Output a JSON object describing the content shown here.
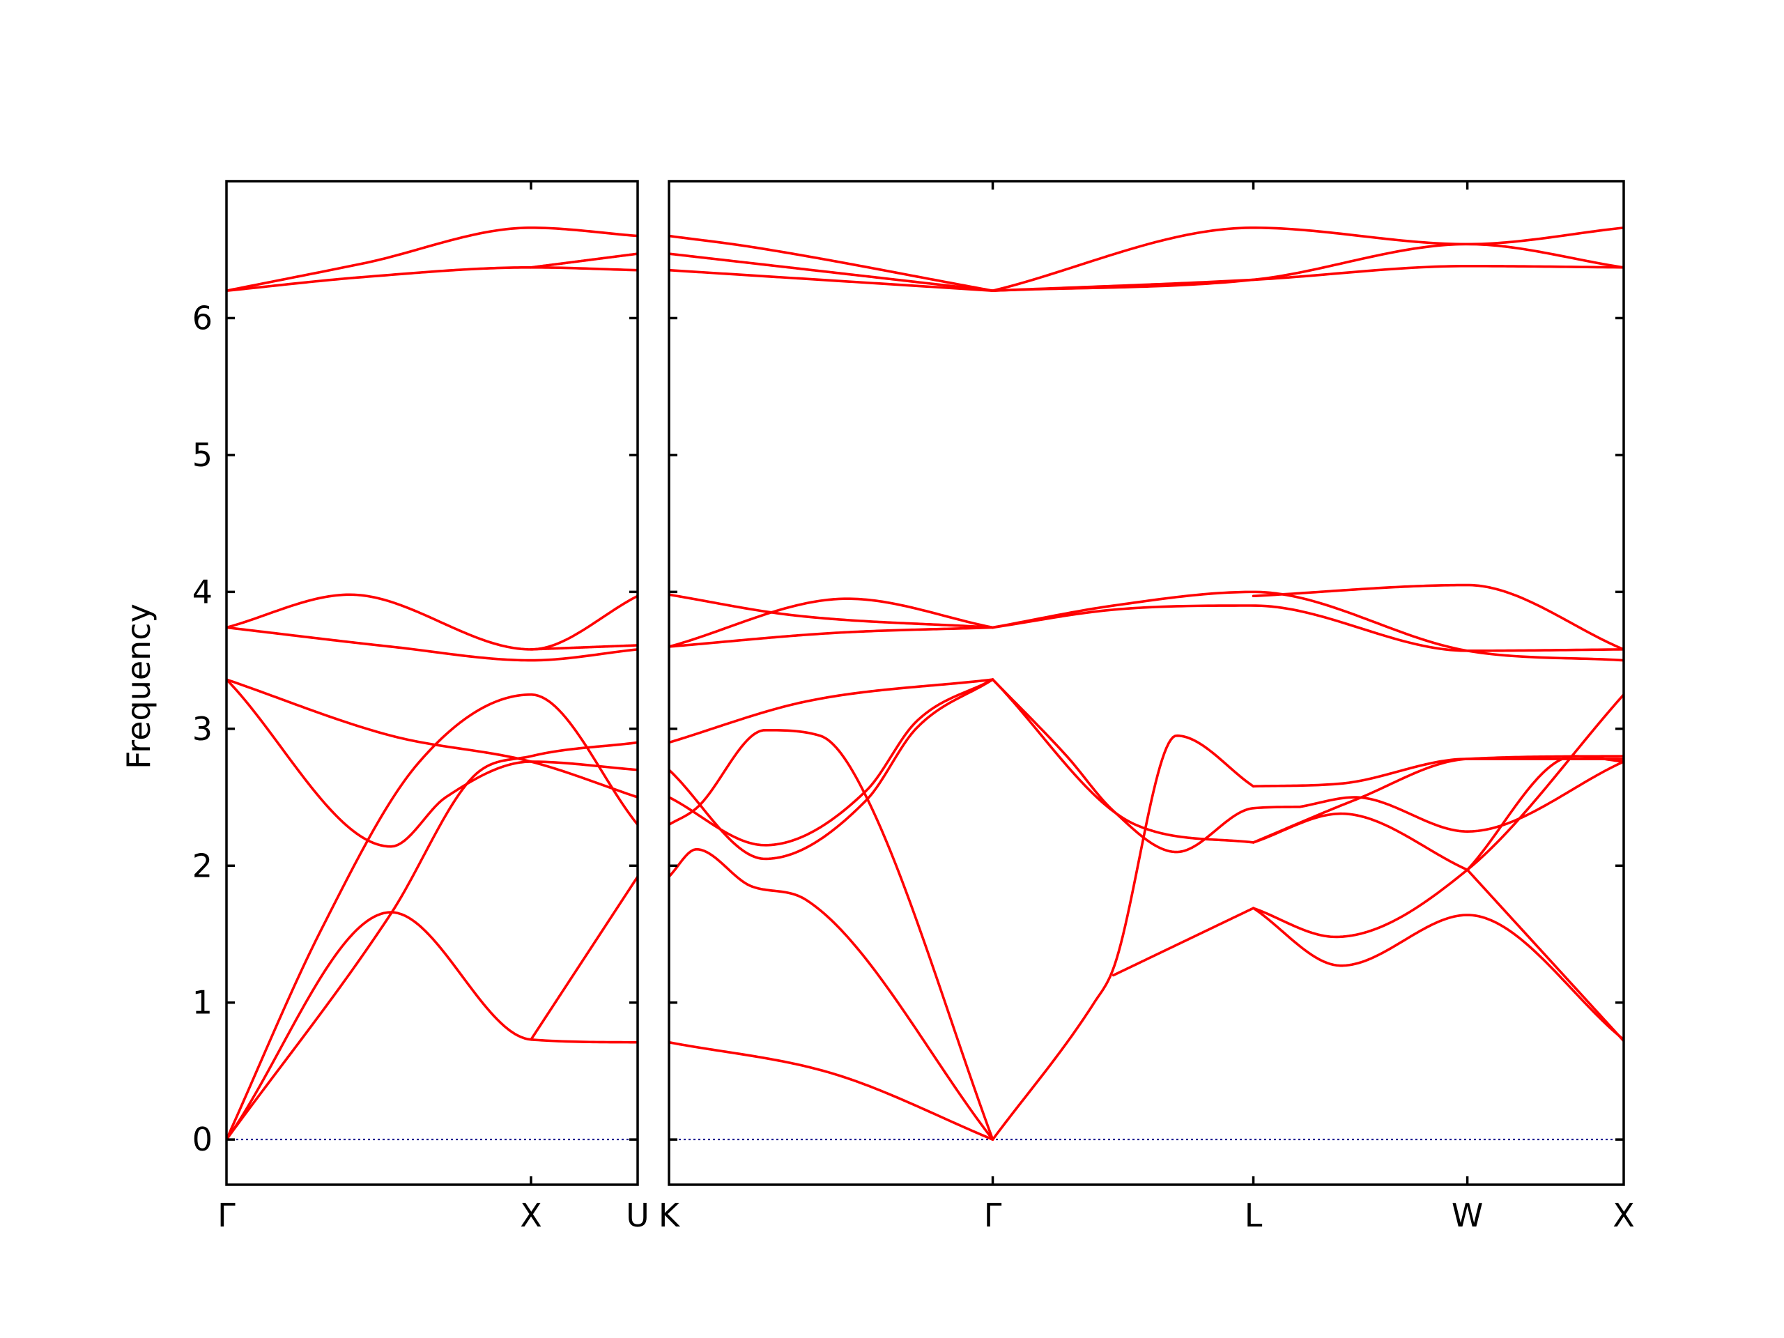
{
  "chart_data": {
    "type": "line",
    "ylabel": "Frequency",
    "ylim": [
      -0.33,
      7.0
    ],
    "yticks": [
      0,
      1,
      2,
      3,
      4,
      5,
      6
    ],
    "grid": false,
    "colors": {
      "bands": "#ff0000",
      "zero_line": "#00008b",
      "frame": "#000000"
    },
    "panels": [
      {
        "name": "left",
        "xlim": [
          0,
          1.5
        ],
        "xticks": [
          {
            "x": 0,
            "label": "Γ"
          },
          {
            "x": 1.111,
            "label": "X"
          },
          {
            "x": 1.5,
            "label": "U"
          }
        ],
        "bands": [
          {
            "x": [
              0,
              0.6,
              1.111,
              1.5
            ],
            "y": [
              0,
              1.66,
              0.73,
              0.71
            ]
          },
          {
            "x": [
              1.111,
              1.5
            ],
            "y": [
              0.73,
              1.92
            ]
          },
          {
            "x": [
              0,
              0.35,
              0.7,
              1.111,
              1.5
            ],
            "y": [
              0,
              1.55,
              2.75,
              3.25,
              2.3
            ]
          },
          {
            "x": [
              0,
              0.6,
              0.9,
              1.111,
              1.5
            ],
            "y": [
              0,
              1.65,
              2.65,
              2.8,
              2.9
            ]
          },
          {
            "x": [
              0,
              0.6,
              0.8,
              1.111,
              1.5
            ],
            "y": [
              3.36,
              2.14,
              2.5,
              2.76,
              2.7
            ]
          },
          {
            "x": [
              0,
              0.6,
              1.111,
              1.5
            ],
            "y": [
              3.36,
              2.95,
              2.76,
              2.5
            ]
          },
          {
            "x": [
              0,
              0.6,
              1.111,
              1.5
            ],
            "y": [
              3.74,
              3.6,
              3.5,
              3.58
            ]
          },
          {
            "x": [
              0,
              0.45,
              1.111,
              1.5
            ],
            "y": [
              3.74,
              3.98,
              3.58,
              3.97
            ]
          },
          {
            "x": [
              1.111,
              1.5
            ],
            "y": [
              3.58,
              3.61
            ]
          },
          {
            "x": [
              0,
              0.5,
              1.111,
              1.5
            ],
            "y": [
              6.2,
              6.3,
              6.37,
              6.35
            ]
          },
          {
            "x": [
              1.111,
              1.5
            ],
            "y": [
              6.37,
              6.47
            ]
          },
          {
            "x": [
              0,
              0.5,
              1.111,
              1.5
            ],
            "y": [
              6.2,
              6.4,
              6.66,
              6.6
            ]
          }
        ]
      },
      {
        "name": "right",
        "xlim": [
          0,
          3.48
        ],
        "xticks": [
          {
            "x": 0,
            "label": "K"
          },
          {
            "x": 1.18,
            "label": "Γ"
          },
          {
            "x": 2.13,
            "label": "L"
          },
          {
            "x": 2.91,
            "label": "W"
          },
          {
            "x": 3.48,
            "label": "X"
          }
        ],
        "bands": [
          {
            "x": [
              0,
              0.6,
              1.18
            ],
            "y": [
              0.71,
              0.48,
              0
            ]
          },
          {
            "x": [
              0,
              0.1,
              0.3,
              0.5,
              1.18
            ],
            "y": [
              1.92,
              2.12,
              1.85,
              1.75,
              0
            ]
          },
          {
            "x": [
              0,
              0.1,
              0.35,
              0.55,
              0.72,
              1.18
            ],
            "y": [
              2.3,
              2.42,
              2.99,
              2.95,
              2.5,
              0
            ]
          },
          {
            "x": [
              0,
              0.35,
              0.72,
              0.9,
              1.18
            ],
            "y": [
              2.7,
              2.05,
              2.48,
              3.0,
              3.36
            ]
          },
          {
            "x": [
              0,
              0.35,
              0.72,
              0.9,
              1.18
            ],
            "y": [
              2.5,
              2.15,
              2.55,
              3.05,
              3.36
            ]
          },
          {
            "x": [
              0,
              0.5,
              1.18
            ],
            "y": [
              2.9,
              3.2,
              3.36
            ]
          },
          {
            "x": [
              1.18,
              1.55,
              1.62,
              1.85,
              2.13
            ],
            "y": [
              0,
              1.0,
              1.25,
              2.95,
              2.58
            ]
          },
          {
            "x": [
              1.18,
              1.45,
              1.62,
              1.85,
              2.13,
              2.3
            ],
            "y": [
              3.36,
              2.8,
              2.4,
              2.1,
              2.42,
              2.43
            ]
          },
          {
            "x": [
              1.18,
              1.7,
              2.13
            ],
            "y": [
              3.36,
              2.3,
              2.17
            ]
          },
          {
            "x": [
              1.62,
              2.13
            ],
            "y": [
              1.2,
              1.69
            ]
          },
          {
            "x": [
              2.13,
              2.45,
              2.91,
              3.48
            ],
            "y": [
              2.58,
              2.6,
              2.78,
              2.78
            ]
          },
          {
            "x": [
              2.13,
              2.5,
              2.91,
              3.48
            ],
            "y": [
              2.17,
              2.48,
              2.78,
              2.8
            ]
          },
          {
            "x": [
              2.3,
              2.5,
              2.91,
              3.48
            ],
            "y": [
              2.43,
              2.5,
              2.25,
              2.76
            ]
          },
          {
            "x": [
              2.13,
              2.45,
              2.91
            ],
            "y": [
              2.17,
              2.38,
              1.97
            ]
          },
          {
            "x": [
              2.91,
              3.3,
              3.48
            ],
            "y": [
              1.97,
              2.8,
              2.76
            ]
          },
          {
            "x": [
              2.13,
              2.43,
              2.91,
              3.48
            ],
            "y": [
              1.69,
              1.48,
              1.97,
              3.25
            ]
          },
          {
            "x": [
              2.13,
              2.45,
              2.91,
              3.48
            ],
            "y": [
              1.69,
              1.27,
              1.64,
              0.73
            ]
          },
          {
            "x": [
              2.91,
              3.48
            ],
            "y": [
              1.97,
              0.72
            ]
          },
          {
            "x": [
              0,
              0.6,
              1.18
            ],
            "y": [
              3.6,
              3.7,
              3.74
            ]
          },
          {
            "x": [
              0,
              0.65,
              1.18
            ],
            "y": [
              3.6,
              3.95,
              3.74
            ]
          },
          {
            "x": [
              0,
              0.45,
              1.18
            ],
            "y": [
              3.98,
              3.83,
              3.74
            ]
          },
          {
            "x": [
              1.18,
              1.62,
              2.13,
              2.91,
              3.48
            ],
            "y": [
              3.74,
              3.9,
              4.0,
              3.57,
              3.5
            ]
          },
          {
            "x": [
              1.18,
              1.62,
              2.13,
              2.91,
              3.48
            ],
            "y": [
              3.74,
              3.87,
              3.9,
              3.57,
              3.58
            ]
          },
          {
            "x": [
              2.13,
              2.91,
              3.48
            ],
            "y": [
              3.97,
              4.05,
              3.58
            ]
          },
          {
            "x": [
              0,
              1.18
            ],
            "y": [
              6.35,
              6.2
            ]
          },
          {
            "x": [
              0,
              1.18
            ],
            "y": [
              6.47,
              6.2
            ]
          },
          {
            "x": [
              0,
              0.3,
              1.18
            ],
            "y": [
              6.6,
              6.52,
              6.2
            ]
          },
          {
            "x": [
              1.18,
              2.13,
              2.91,
              3.48
            ],
            "y": [
              6.2,
              6.28,
              6.38,
              6.37
            ]
          },
          {
            "x": [
              1.18,
              2.13,
              2.91,
              3.48
            ],
            "y": [
              6.2,
              6.28,
              6.54,
              6.37
            ]
          },
          {
            "x": [
              1.18,
              2.13,
              2.91,
              3.48
            ],
            "y": [
              6.2,
              6.66,
              6.54,
              6.66
            ]
          }
        ]
      }
    ]
  }
}
